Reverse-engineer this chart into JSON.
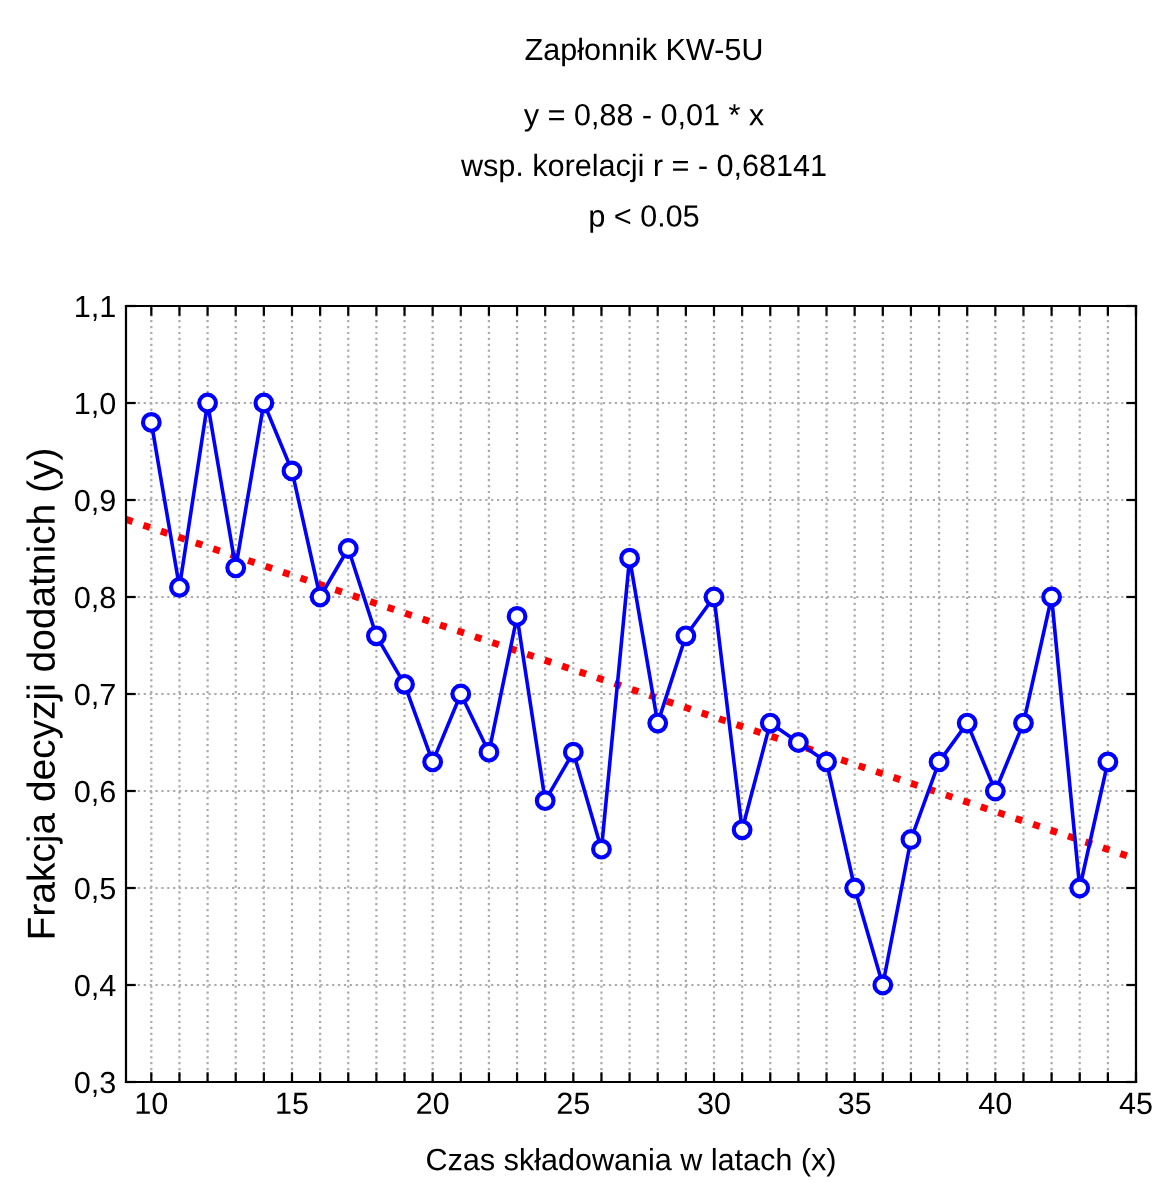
{
  "chart_data": {
    "type": "line",
    "title": "Zapłonnik KW-5U",
    "subtitle": "y = 0,88 - 0,01 * x\nwsp. korelacji r = - 0,68141\np < 0.05",
    "xlabel": "Czas składowania w latach (x)",
    "ylabel": "Frakcja decyzji dodatnich (y)",
    "series": [
      {
        "color": "#0000ff",
        "marker": "circle",
        "line_style": "solid",
        "x": [
          10,
          11,
          12,
          13,
          14,
          15,
          16,
          17,
          18,
          19,
          20,
          21,
          22,
          23,
          24,
          25,
          26,
          27,
          28,
          29,
          30,
          31,
          32,
          33,
          34,
          35,
          36,
          37,
          38,
          39,
          40,
          41,
          42,
          43,
          44
        ],
        "values": [
          0.98,
          0.81,
          1.0,
          0.83,
          1.0,
          0.93,
          0.8,
          0.85,
          0.76,
          0.71,
          0.63,
          0.7,
          0.64,
          0.78,
          0.59,
          0.64,
          0.54,
          0.84,
          0.67,
          0.76,
          0.8,
          0.56,
          0.67,
          0.65,
          0.63,
          0.5,
          0.4,
          0.55,
          0.63,
          0.67,
          0.6,
          0.67,
          0.8,
          0.5,
          0.63
        ]
      },
      {
        "color": "#ff0000",
        "marker": "none",
        "line_style": "dotted",
        "x": [
          9.1,
          45
        ],
        "values": [
          0.88,
          0.53
        ]
      }
    ],
    "xlim": [
      9.1,
      45
    ],
    "ylim": [
      0.3,
      1.1
    ],
    "xticks": [
      10,
      {
        "value": 11,
        "label": null
      },
      {
        "value": 12,
        "label": null
      },
      {
        "value": 13,
        "label": null
      },
      {
        "value": 14,
        "label": null
      },
      15,
      {
        "value": 16,
        "label": null
      },
      {
        "value": 17,
        "label": null
      },
      {
        "value": 18,
        "label": null
      },
      {
        "value": 19,
        "label": null
      },
      20,
      {
        "value": 21,
        "label": null
      },
      {
        "value": 22,
        "label": null
      },
      {
        "value": 23,
        "label": null
      },
      {
        "value": 24,
        "label": null
      },
      25,
      {
        "value": 26,
        "label": null
      },
      {
        "value": 27,
        "label": null
      },
      {
        "value": 28,
        "label": null
      },
      {
        "value": 29,
        "label": null
      },
      30,
      {
        "value": 31,
        "label": null
      },
      {
        "value": 32,
        "label": null
      },
      {
        "value": 33,
        "label": null
      },
      {
        "value": 34,
        "label": null
      },
      35,
      {
        "value": 36,
        "label": null
      },
      {
        "value": 37,
        "label": null
      },
      {
        "value": 38,
        "label": null
      },
      {
        "value": 39,
        "label": null
      },
      40,
      {
        "value": 41,
        "label": null
      },
      {
        "value": 42,
        "label": null
      },
      {
        "value": 43,
        "label": null
      },
      {
        "value": 44,
        "label": null
      },
      45
    ],
    "yticks": [
      {
        "value": 0.3,
        "label": "0,3"
      },
      {
        "value": 0.4,
        "label": "0,4"
      },
      {
        "value": 0.5,
        "label": "0,5"
      },
      {
        "value": 0.6,
        "label": "0,6"
      },
      {
        "value": 0.7,
        "label": "0,7"
      },
      {
        "value": 0.8,
        "label": "0,8"
      },
      {
        "value": 0.9,
        "label": "0,9"
      },
      {
        "value": 1.0,
        "label": "1,0"
      },
      {
        "value": 1.1,
        "label": "1,1"
      }
    ],
    "grid": true
  }
}
